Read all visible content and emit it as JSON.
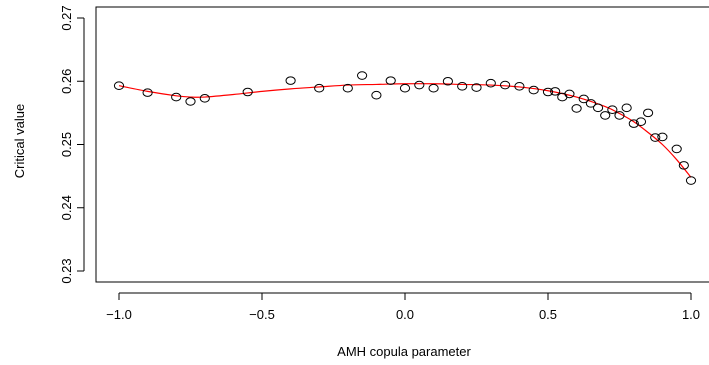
{
  "chart_data": {
    "type": "scatter",
    "title": "",
    "xlabel": "AMH copula parameter",
    "ylabel": "Critical value",
    "xlim": [
      -1.0,
      1.0
    ],
    "ylim": [
      0.23,
      0.27
    ],
    "x_ticks": [
      -1.0,
      -0.5,
      0.0,
      0.5,
      1.0
    ],
    "x_tick_labels": [
      "−1.0",
      "−0.5",
      "0.0",
      "0.5",
      "1.0"
    ],
    "y_ticks": [
      0.23,
      0.24,
      0.25,
      0.26,
      0.27
    ],
    "y_tick_labels": [
      "0.23",
      "0.24",
      "0.25",
      "0.26",
      "0.27"
    ],
    "grid": false,
    "colors": {
      "points": "#000000",
      "curve": "#ff0000",
      "axes": "#000000"
    },
    "series": [
      {
        "type": "scatter",
        "marker": "open-circle",
        "x": [
          -1.0,
          -0.9,
          -0.8,
          -0.75,
          -0.7,
          -0.55,
          -0.4,
          -0.3,
          -0.2,
          -0.15,
          -0.1,
          -0.05,
          0.0,
          0.05,
          0.1,
          0.15,
          0.2,
          0.25,
          0.3,
          0.35,
          0.4,
          0.45,
          0.5,
          0.525,
          0.55,
          0.575,
          0.6,
          0.625,
          0.65,
          0.675,
          0.7,
          0.725,
          0.75,
          0.775,
          0.8,
          0.825,
          0.85,
          0.875,
          0.9,
          0.95,
          0.975,
          1.0
        ],
        "y": [
          0.2593,
          0.2582,
          0.2575,
          0.2568,
          0.2573,
          0.2583,
          0.2601,
          0.2589,
          0.2589,
          0.2609,
          0.2578,
          0.2601,
          0.2589,
          0.2594,
          0.2589,
          0.26,
          0.2592,
          0.259,
          0.2597,
          0.2594,
          0.2592,
          0.2586,
          0.2583,
          0.2584,
          0.2575,
          0.258,
          0.2557,
          0.2572,
          0.2565,
          0.2558,
          0.2546,
          0.2555,
          0.2546,
          0.2558,
          0.2533,
          0.2536,
          0.255,
          0.2511,
          0.2512,
          0.2493,
          0.2467,
          0.2443
        ]
      },
      {
        "type": "line",
        "x": [
          -1.0,
          -0.9,
          -0.8,
          -0.75,
          -0.7,
          -0.6,
          -0.5,
          -0.4,
          -0.3,
          -0.2,
          -0.1,
          0.0,
          0.1,
          0.2,
          0.3,
          0.4,
          0.5,
          0.6,
          0.7,
          0.75,
          0.8,
          0.85,
          0.9,
          0.95,
          1.0
        ],
        "y": [
          0.2593,
          0.2584,
          0.2577,
          0.2575,
          0.2575,
          0.2579,
          0.2584,
          0.2588,
          0.2591,
          0.2594,
          0.2595,
          0.2596,
          0.2596,
          0.2595,
          0.2594,
          0.2591,
          0.2585,
          0.2575,
          0.256,
          0.2549,
          0.2536,
          0.2519,
          0.25,
          0.2476,
          0.2448
        ]
      }
    ]
  }
}
